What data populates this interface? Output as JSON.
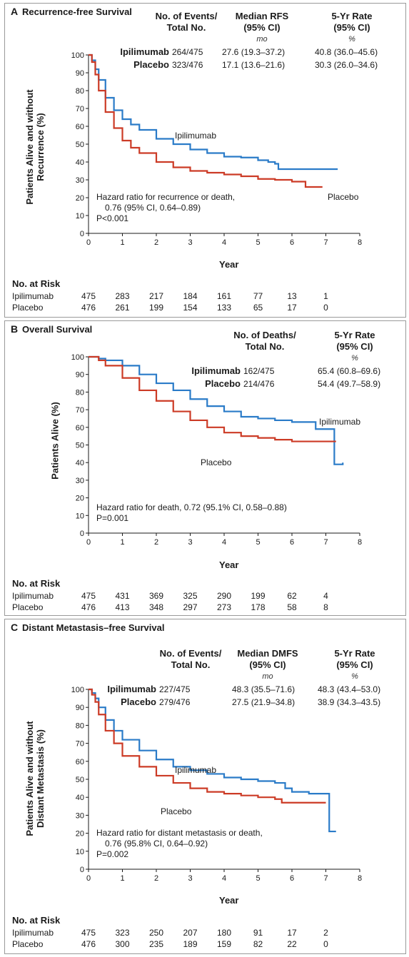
{
  "colors": {
    "ipilimumab": "#2a7bc8",
    "placebo": "#cc3b26",
    "axis": "#1a1a1a"
  },
  "panels": [
    {
      "letter": "A",
      "title": "Recurrence-free Survival",
      "header": {
        "col1": [
          "No. of Events/",
          "Total No."
        ],
        "col2": [
          "Median RFS",
          "(95% CI)"
        ],
        "col3": [
          "5-Yr Rate",
          "(95% CI)"
        ],
        "unit2": "mo",
        "unit3": "%"
      },
      "rows": [
        {
          "label": "Ipilimumab",
          "events": "264/475",
          "median": "27.6 (19.3–37.2)",
          "rate": "40.8 (36.0–45.6)"
        },
        {
          "label": "Placebo",
          "events": "323/476",
          "median": "17.1 (13.6–21.6)",
          "rate": "30.3 (26.0–34.6)"
        }
      ],
      "ylabel": [
        "Patients Alive and without",
        "Recurrence (%)"
      ],
      "xlabel": "Year",
      "note": [
        "Hazard ratio for recurrence or death,",
        "0.76 (95% CI, 0.64–0.89)",
        "P<0.001"
      ],
      "curve_labels": {
        "ipilimumab": "Ipilimumab",
        "placebo": "Placebo"
      },
      "risk": {
        "title": "No. at Risk",
        "rows": [
          {
            "label": "Ipilimumab",
            "values": [
              "475",
              "283",
              "217",
              "184",
              "161",
              "77",
              "13",
              "1"
            ]
          },
          {
            "label": "Placebo",
            "values": [
              "476",
              "261",
              "199",
              "154",
              "133",
              "65",
              "17",
              "0"
            ]
          }
        ]
      }
    },
    {
      "letter": "B",
      "title": "Overall Survival",
      "header": {
        "col1": [
          "No. of Deaths/",
          "Total No."
        ],
        "col2": [],
        "col3": [
          "5-Yr Rate",
          "(95% CI)"
        ],
        "unit2": "",
        "unit3": "%"
      },
      "rows": [
        {
          "label": "Ipilimumab",
          "events": "162/475",
          "median": "",
          "rate": "65.4 (60.8–69.6)"
        },
        {
          "label": "Placebo",
          "events": "214/476",
          "median": "",
          "rate": "54.4 (49.7–58.9)"
        }
      ],
      "ylabel": [
        "Patients Alive (%)"
      ],
      "xlabel": "Year",
      "note": [
        "Hazard ratio for death, 0.72 (95.1% CI, 0.58–0.88)",
        "P=0.001"
      ],
      "curve_labels": {
        "ipilimumab": "Ipilimumab",
        "placebo": "Placebo"
      },
      "risk": {
        "title": "No. at Risk",
        "rows": [
          {
            "label": "Ipilimumab",
            "values": [
              "475",
              "431",
              "369",
              "325",
              "290",
              "199",
              "62",
              "4"
            ]
          },
          {
            "label": "Placebo",
            "values": [
              "476",
              "413",
              "348",
              "297",
              "273",
              "178",
              "58",
              "8"
            ]
          }
        ]
      }
    },
    {
      "letter": "C",
      "title": "Distant Metastasis–free Survival",
      "header": {
        "col1": [
          "No. of Events/",
          "Total No."
        ],
        "col2": [
          "Median DMFS",
          "(95% CI)"
        ],
        "col3": [
          "5-Yr Rate",
          "(95% CI)"
        ],
        "unit2": "mo",
        "unit3": "%"
      },
      "rows": [
        {
          "label": "Ipilimumab",
          "events": "227/475",
          "median": "48.3 (35.5–71.6)",
          "rate": "48.3 (43.4–53.0)"
        },
        {
          "label": "Placebo",
          "events": "279/476",
          "median": "27.5 (21.9–34.8)",
          "rate": "38.9 (34.3–43.5)"
        }
      ],
      "ylabel": [
        "Patients Alive and without",
        "Distant Metastasis (%)"
      ],
      "xlabel": "Year",
      "note": [
        "Hazard ratio for distant metastasis or death,",
        "0.76 (95.8% CI, 0.64–0.92)",
        "P=0.002"
      ],
      "curve_labels": {
        "ipilimumab": "Ipilimumab",
        "placebo": "Placebo"
      },
      "risk": {
        "title": "No. at Risk",
        "rows": [
          {
            "label": "Ipilimumab",
            "values": [
              "475",
              "323",
              "250",
              "207",
              "180",
              "91",
              "17",
              "2"
            ]
          },
          {
            "label": "Placebo",
            "values": [
              "476",
              "300",
              "235",
              "189",
              "159",
              "82",
              "22",
              "0"
            ]
          }
        ]
      }
    }
  ],
  "chart_data": [
    {
      "type": "line",
      "title": "Recurrence-free Survival",
      "xlabel": "Year",
      "ylabel": "Patients Alive and without Recurrence (%)",
      "xlim": [
        0,
        8
      ],
      "ylim": [
        0,
        100
      ],
      "xticks": [
        0,
        1,
        2,
        3,
        4,
        5,
        6,
        7,
        8
      ],
      "yticks": [
        0,
        10,
        20,
        30,
        40,
        50,
        60,
        70,
        80,
        90,
        100
      ],
      "series": [
        {
          "name": "Ipilimumab",
          "x": [
            0,
            0.1,
            0.2,
            0.3,
            0.5,
            0.75,
            1,
            1.25,
            1.5,
            2,
            2.5,
            3,
            3.5,
            4,
            4.5,
            5,
            5.3,
            5.5,
            5.6,
            6,
            6.5,
            7,
            7.35
          ],
          "y": [
            100,
            97,
            92,
            86,
            76,
            69,
            64,
            61,
            58,
            53,
            50,
            47,
            45,
            43,
            42.5,
            41,
            40,
            39,
            36,
            36,
            36,
            36,
            36
          ]
        },
        {
          "name": "Placebo",
          "x": [
            0,
            0.1,
            0.2,
            0.3,
            0.5,
            0.75,
            1,
            1.25,
            1.5,
            2,
            2.5,
            3,
            3.5,
            4,
            4.5,
            5,
            5.5,
            6,
            6.3,
            6.4,
            6.9
          ],
          "y": [
            100,
            96,
            89,
            80,
            68,
            59,
            52,
            48,
            45,
            40,
            37,
            35,
            34,
            33,
            32,
            30.5,
            30,
            29,
            29,
            26,
            26
          ]
        }
      ]
    },
    {
      "type": "line",
      "title": "Overall Survival",
      "xlabel": "Year",
      "ylabel": "Patients Alive (%)",
      "xlim": [
        0,
        8
      ],
      "ylim": [
        0,
        100
      ],
      "xticks": [
        0,
        1,
        2,
        3,
        4,
        5,
        6,
        7,
        8
      ],
      "yticks": [
        0,
        10,
        20,
        30,
        40,
        50,
        60,
        70,
        80,
        90,
        100
      ],
      "series": [
        {
          "name": "Ipilimumab",
          "x": [
            0,
            0.3,
            0.5,
            1,
            1.5,
            2,
            2.5,
            3,
            3.5,
            4,
            4.5,
            5,
            5.5,
            6,
            6.6,
            6.7,
            7.2,
            7.25,
            7.5
          ],
          "y": [
            100,
            99,
            98,
            95,
            90,
            85,
            81,
            76,
            72,
            69,
            66,
            65,
            64,
            63,
            63,
            59,
            59,
            39,
            40
          ]
        },
        {
          "name": "Placebo",
          "x": [
            0,
            0.3,
            0.5,
            1,
            1.5,
            2,
            2.5,
            3,
            3.5,
            4,
            4.5,
            5,
            5.5,
            6,
            6.5,
            7,
            7.3
          ],
          "y": [
            100,
            98,
            95,
            88,
            81,
            75,
            69,
            64,
            60,
            57,
            55,
            54,
            53,
            52,
            52,
            52,
            52
          ]
        }
      ]
    },
    {
      "type": "line",
      "title": "Distant Metastasis–free Survival",
      "xlabel": "Year",
      "ylabel": "Patients Alive and without Distant Metastasis (%)",
      "xlim": [
        0,
        8
      ],
      "ylim": [
        0,
        100
      ],
      "xticks": [
        0,
        1,
        2,
        3,
        4,
        5,
        6,
        7,
        8
      ],
      "yticks": [
        0,
        10,
        20,
        30,
        40,
        50,
        60,
        70,
        80,
        90,
        100
      ],
      "series": [
        {
          "name": "Ipilimumab",
          "x": [
            0,
            0.1,
            0.2,
            0.3,
            0.5,
            0.75,
            1,
            1.5,
            2,
            2.5,
            3,
            3.5,
            4,
            4.5,
            5,
            5.5,
            5.8,
            6,
            6.5,
            7.05,
            7.1,
            7.3
          ],
          "y": [
            100,
            98,
            95,
            90,
            83,
            77,
            72,
            66,
            61,
            57,
            55,
            53,
            51,
            50,
            49,
            48,
            45,
            43,
            42,
            42,
            21,
            21
          ]
        },
        {
          "name": "Placebo",
          "x": [
            0,
            0.1,
            0.2,
            0.3,
            0.5,
            0.75,
            1,
            1.5,
            2,
            2.5,
            3,
            3.5,
            4,
            4.5,
            5,
            5.5,
            5.7,
            6,
            6.5,
            7
          ],
          "y": [
            100,
            97,
            93,
            86,
            77,
            70,
            63,
            57,
            52,
            48,
            45,
            43,
            42,
            41,
            40,
            39,
            37,
            37,
            37,
            37
          ]
        }
      ]
    }
  ]
}
